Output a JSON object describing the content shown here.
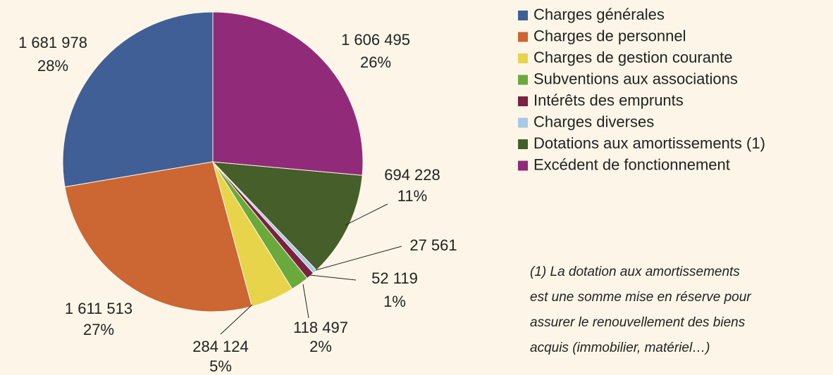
{
  "chart_data": {
    "type": "pie",
    "categories": [
      "Charges générales",
      "Charges de personnel",
      "Charges de gestion courante",
      "Subventions aux associations",
      "Intérêts des emprunts",
      "Charges diverses",
      "Dotations aux amortissements (1)",
      "Excédent de fonctionnement"
    ],
    "values": [
      1681978,
      1611513,
      284124,
      118497,
      52119,
      27561,
      694228,
      1606495
    ],
    "value_labels": [
      "1 681 978",
      "1 611 513",
      "284 124",
      "118 497",
      "52 119",
      "27 561",
      "694 228",
      "1 606 495"
    ],
    "percent_labels": [
      "28%",
      "27%",
      "5%",
      "2%",
      "1%",
      null,
      "11%",
      "26%"
    ],
    "colors": [
      "#3f5f96",
      "#cc6633",
      "#e8d44a",
      "#6aaa3c",
      "#7a2240",
      "#a8c9e8",
      "#455e2a",
      "#922a7a"
    ],
    "note": [
      "(1) La dotation aux amortissements",
      "est une somme mise en réserve pour",
      "assurer le renouvellement des biens",
      "acquis (immobilier, matériel…)"
    ]
  }
}
